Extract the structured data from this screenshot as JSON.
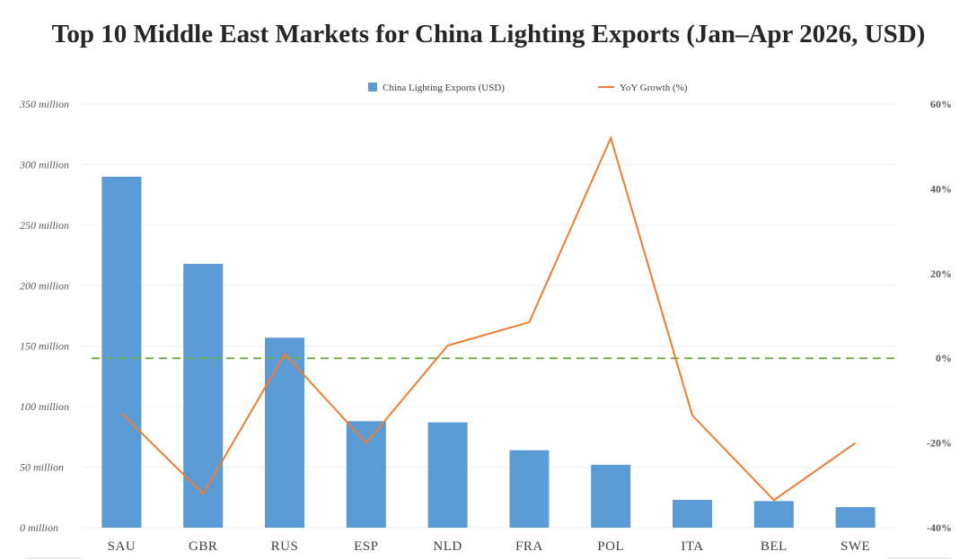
{
  "chart_data": {
    "type": "bar",
    "title": "Top 10 Middle East Markets for China Lighting Exports (Jan–Apr 2026, USD)",
    "categories": [
      "SAU",
      "GBR",
      "RUS",
      "ESP",
      "NLD",
      "FRA",
      "POL",
      "ITA",
      "BEL",
      "SWE"
    ],
    "series": [
      {
        "name": "China Lighting Exports (USD)",
        "type": "bar",
        "axis": "left",
        "color": "#5b9bd5",
        "values": [
          290000000,
          218000000,
          157000000,
          88000000,
          87000000,
          64000000,
          52000000,
          23000000,
          22000000,
          17000000
        ]
      },
      {
        "name": "YoY Growth (%)",
        "type": "line",
        "axis": "right",
        "color": "#ed7d31",
        "values": [
          -13,
          -32,
          1,
          -20,
          3,
          8.5,
          52,
          -13.5,
          -33.5,
          -20
        ]
      }
    ],
    "reference_line": {
      "axis": "right",
      "value": 0,
      "color": "#70ad47",
      "style": "dashed"
    },
    "y_left": {
      "ylim": [
        0,
        350000000
      ],
      "ticks": [
        0,
        50000000,
        100000000,
        150000000,
        200000000,
        250000000,
        300000000,
        350000000
      ],
      "tick_labels": [
        "0 million",
        "50 million",
        "100 million",
        "150 million",
        "200 million",
        "250 million",
        "300 million",
        "350 million"
      ]
    },
    "y_right": {
      "ylim": [
        -40,
        60
      ],
      "ticks": [
        -40,
        -20,
        0,
        20,
        40,
        60
      ],
      "tick_labels": [
        "-40%",
        "-20%",
        "0%",
        "20%",
        "40%",
        "60%"
      ]
    },
    "xlabel": "",
    "ylabel": "",
    "grid": true,
    "legend_position": "top-center"
  }
}
